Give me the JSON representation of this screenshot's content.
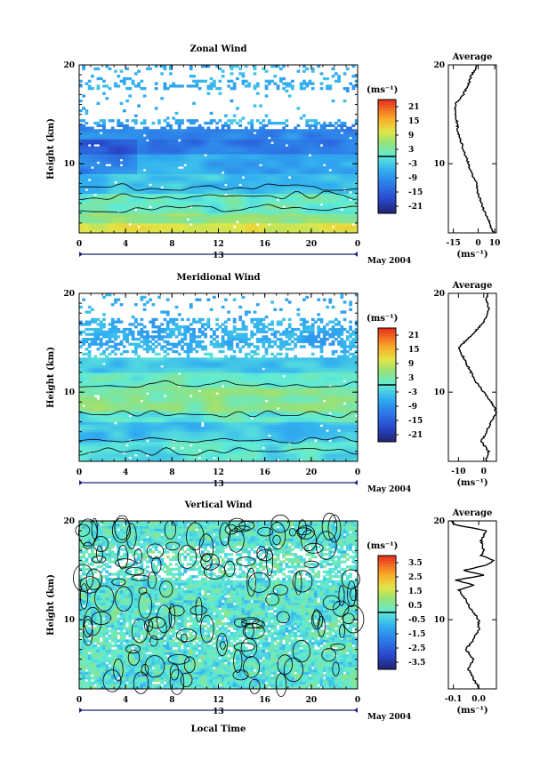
{
  "chart_data": [
    {
      "type": "heatmap",
      "title": "Zonal Wind",
      "ylabel": "Height (km)",
      "ylim": [
        3,
        20
      ],
      "yticks": [
        "10",
        "20"
      ],
      "xlim": [
        0,
        24
      ],
      "xticks": [
        "0",
        "4",
        "8",
        "12",
        "16",
        "20",
        "0"
      ],
      "date_label": "13",
      "month_label": "May 2004",
      "colorbar": {
        "unit": "(ms⁻¹)",
        "range": [
          -24,
          24
        ],
        "ticks": [
          "21",
          "15",
          "9",
          "3",
          "-3",
          "-9",
          "-15",
          "-21"
        ],
        "zero_line": true
      },
      "profile_points": [
        [
          3.0,
          9
        ],
        [
          4.0,
          7
        ],
        [
          5.0,
          4
        ],
        [
          6.0,
          2
        ],
        [
          7.0,
          0
        ],
        [
          8.0,
          -1
        ],
        [
          9.0,
          -4
        ],
        [
          10.0,
          -6
        ],
        [
          11.0,
          -8
        ],
        [
          12.0,
          -10
        ],
        [
          13.0,
          -12
        ],
        [
          14.5,
          -13
        ],
        [
          16.0,
          -14
        ],
        [
          17.0,
          -9
        ],
        [
          18.0,
          -6
        ],
        [
          19.0,
          -4
        ],
        [
          19.5,
          -2
        ],
        [
          20.0,
          -1
        ]
      ],
      "profile": {
        "title": "Average",
        "xlabel": "(ms⁻¹)",
        "xlim": [
          -18,
          11
        ],
        "xticks": [
          "-15",
          "0",
          "10"
        ],
        "yticks": [
          "10",
          "20"
        ]
      }
    },
    {
      "type": "heatmap",
      "title": "Meridional Wind",
      "ylabel": "Height (km)",
      "ylim": [
        3,
        20
      ],
      "yticks": [
        "10",
        "20"
      ],
      "xlim": [
        0,
        24
      ],
      "xticks": [
        "0",
        "4",
        "8",
        "12",
        "16",
        "20",
        "0"
      ],
      "date_label": "13",
      "month_label": "May 2004",
      "colorbar": {
        "unit": "(ms⁻¹)",
        "range": [
          -24,
          24
        ],
        "ticks": [
          "21",
          "15",
          "9",
          "3",
          "-3",
          "-9",
          "-15",
          "-21"
        ],
        "zero_line": true
      },
      "profile_points": [
        [
          3.0,
          1
        ],
        [
          4.0,
          2
        ],
        [
          5.0,
          -1
        ],
        [
          6.0,
          1
        ],
        [
          7.0,
          3
        ],
        [
          8.0,
          5
        ],
        [
          9.0,
          3
        ],
        [
          10.0,
          0
        ],
        [
          11.0,
          -3
        ],
        [
          12.0,
          -5
        ],
        [
          13.0,
          -7
        ],
        [
          14.5,
          -10
        ],
        [
          15.5,
          -6
        ],
        [
          16.5,
          -2
        ],
        [
          17.5,
          1
        ],
        [
          18.5,
          2
        ],
        [
          19.5,
          1
        ],
        [
          20.0,
          2
        ]
      ],
      "profile": {
        "title": "Average",
        "xlabel": "(ms⁻¹)",
        "xlim": [
          -14,
          5
        ],
        "xticks": [
          "-10",
          "0"
        ],
        "yticks": [
          "10",
          "20"
        ]
      }
    },
    {
      "type": "heatmap",
      "title": "Vertical Wind",
      "ylabel": "Height (km)",
      "xlabel": "Local Time",
      "ylim": [
        3,
        20
      ],
      "yticks": [
        "10",
        "20"
      ],
      "xlim": [
        0,
        24
      ],
      "xticks": [
        "0",
        "4",
        "8",
        "12",
        "16",
        "20",
        "0"
      ],
      "date_label": "13",
      "month_label": "May 2004",
      "colorbar": {
        "unit": "(ms⁻¹)",
        "range": [
          -4,
          4
        ],
        "ticks": [
          "3.5",
          "2.5",
          "1.5",
          "0.5",
          "-0.5",
          "-1.5",
          "-2.5",
          "-3.5"
        ],
        "zero_line": true
      },
      "profile_points": [
        [
          3.0,
          0.0
        ],
        [
          4.0,
          -0.02
        ],
        [
          5.0,
          -0.04
        ],
        [
          6.0,
          -0.02
        ],
        [
          7.0,
          -0.05
        ],
        [
          8.0,
          -0.02
        ],
        [
          9.0,
          0.0
        ],
        [
          10.0,
          0.0
        ],
        [
          11.0,
          -0.03
        ],
        [
          12.0,
          -0.05
        ],
        [
          13.0,
          -0.08
        ],
        [
          13.5,
          -0.02
        ],
        [
          14.0,
          -0.09
        ],
        [
          14.5,
          0.02
        ],
        [
          15.0,
          -0.06
        ],
        [
          15.5,
          0.03
        ],
        [
          16.0,
          0.06
        ],
        [
          16.5,
          0.01
        ],
        [
          17.0,
          0.02
        ],
        [
          18.0,
          0.01
        ],
        [
          19.0,
          0.03
        ],
        [
          19.6,
          -0.09
        ],
        [
          20.0,
          -0.11
        ]
      ],
      "profile": {
        "title": "Average",
        "xlabel": "(ms⁻¹)",
        "xlim": [
          -0.12,
          0.07
        ],
        "xticks": [
          "-0.1",
          "0.0"
        ],
        "yticks": [
          "10",
          "20"
        ]
      }
    }
  ]
}
